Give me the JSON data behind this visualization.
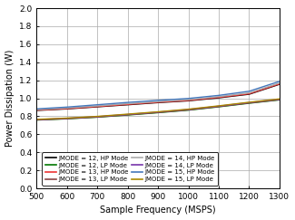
{
  "x": [
    500,
    600,
    700,
    800,
    900,
    1000,
    1100,
    1200,
    1300
  ],
  "lines": [
    {
      "label": "JMODE = 12, HP Mode",
      "color": "#000000",
      "lw": 1.0,
      "y": [
        0.865,
        0.882,
        0.905,
        0.928,
        0.952,
        0.972,
        1.005,
        1.045,
        1.155
      ]
    },
    {
      "label": "JMODE = 13, HP Mode",
      "color": "#EE3333",
      "lw": 1.0,
      "y": [
        0.868,
        0.885,
        0.908,
        0.932,
        0.956,
        0.976,
        1.01,
        1.05,
        1.16
      ]
    },
    {
      "label": "JMODE = 14, HP Mode",
      "color": "#AAAAAA",
      "lw": 1.0,
      "y": [
        0.873,
        0.892,
        0.915,
        0.94,
        0.963,
        0.984,
        1.018,
        1.06,
        1.17
      ]
    },
    {
      "label": "JMODE = 15, HP Mode",
      "color": "#4477BB",
      "lw": 1.0,
      "y": [
        0.882,
        0.902,
        0.928,
        0.954,
        0.977,
        0.998,
        1.032,
        1.078,
        1.188
      ]
    },
    {
      "label": "JMODE = 12, LP Mode",
      "color": "#007700",
      "lw": 1.0,
      "y": [
        0.758,
        0.772,
        0.79,
        0.814,
        0.84,
        0.868,
        0.905,
        0.945,
        0.982
      ]
    },
    {
      "label": "JMODE = 13, LP Mode",
      "color": "#884444",
      "lw": 1.0,
      "y": [
        0.76,
        0.774,
        0.792,
        0.817,
        0.843,
        0.871,
        0.908,
        0.948,
        0.985
      ]
    },
    {
      "label": "JMODE = 14, LP Mode",
      "color": "#7733AA",
      "lw": 1.0,
      "y": [
        0.763,
        0.777,
        0.796,
        0.82,
        0.846,
        0.875,
        0.912,
        0.952,
        0.989
      ]
    },
    {
      "label": "JMODE = 15, LP Mode",
      "color": "#AA8800",
      "lw": 1.0,
      "y": [
        0.766,
        0.78,
        0.799,
        0.824,
        0.85,
        0.879,
        0.916,
        0.956,
        0.993
      ]
    }
  ],
  "xlabel": "Sample Frequency (MSPS)",
  "ylabel": "Power Dissipation (W)",
  "xlim": [
    500,
    1300
  ],
  "ylim": [
    0,
    2
  ],
  "xticks": [
    500,
    600,
    700,
    800,
    900,
    1000,
    1100,
    1200,
    1300
  ],
  "yticks": [
    0,
    0.2,
    0.4,
    0.6,
    0.8,
    1.0,
    1.2,
    1.4,
    1.6,
    1.8,
    2.0
  ],
  "legend_fontsize": 5.0,
  "label_fontsize": 7.0,
  "tick_fontsize": 6.5,
  "legend_order": [
    0,
    4,
    1,
    5,
    2,
    6,
    3,
    7
  ]
}
